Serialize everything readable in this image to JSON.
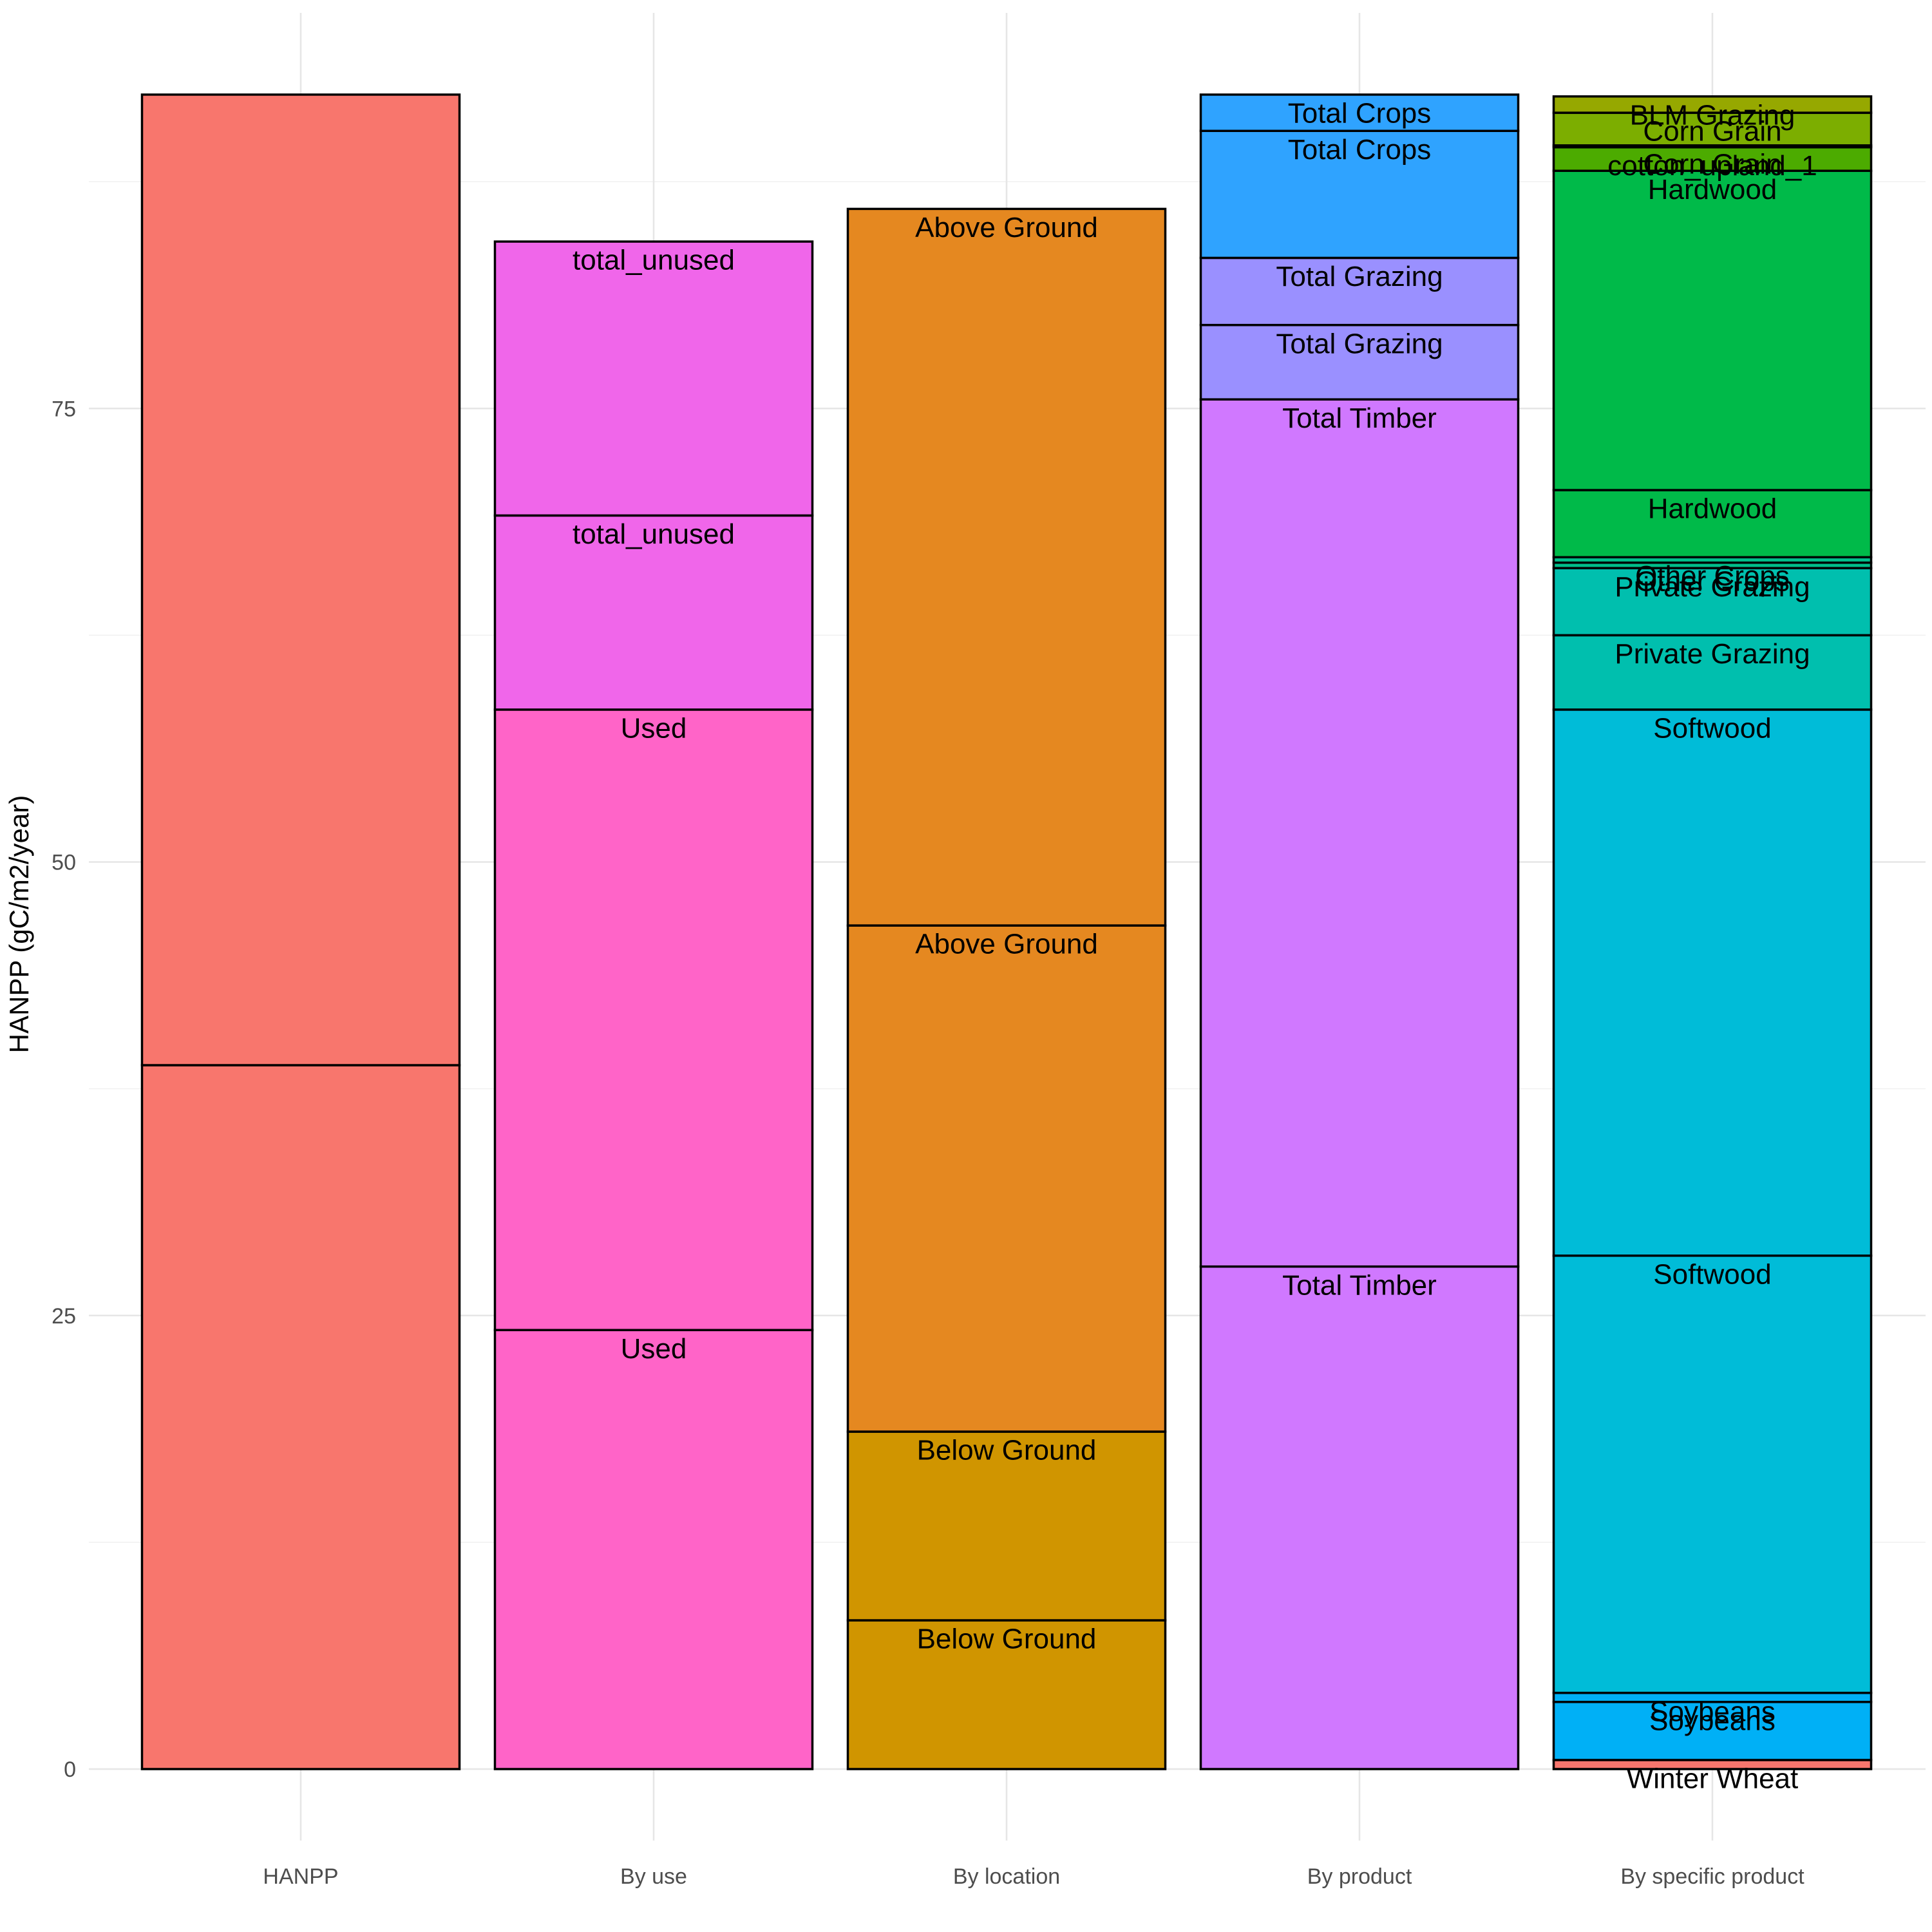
{
  "chart_data": {
    "type": "bar",
    "stacked": true,
    "ylabel": "HANPP (gC/m2/year)",
    "xlabel": "",
    "ylim": [
      0,
      96
    ],
    "yticks": [
      0,
      25,
      50,
      75
    ],
    "grid": true,
    "legend": "none",
    "categories": [
      "HANPP",
      "By use",
      "By location",
      "By product",
      "By specific product"
    ],
    "bars": [
      {
        "category": "HANPP",
        "color": "#F8766D",
        "segments": [
          {
            "label": "",
            "value": 38.8,
            "color": "#F8766D"
          },
          {
            "label": "",
            "value": 53.5,
            "color": "#F8766D"
          }
        ]
      },
      {
        "category": "By use",
        "segments": [
          {
            "label": "Used",
            "value": 24.2,
            "color": "#FF64C8"
          },
          {
            "label": "Used",
            "value": 34.2,
            "color": "#FF64C8"
          },
          {
            "label": "total_unused",
            "value": 10.7,
            "color": "#F066EA"
          },
          {
            "label": "total_unused",
            "value": 15.1,
            "color": "#F066EA"
          }
        ]
      },
      {
        "category": "By location",
        "segments": [
          {
            "label": "Below Ground",
            "value": 8.2,
            "color": "#D09500"
          },
          {
            "label": "Below Ground",
            "value": 10.4,
            "color": "#D09500"
          },
          {
            "label": "Above Ground",
            "value": 27.9,
            "color": "#E58820"
          },
          {
            "label": "Above Ground",
            "value": 39.5,
            "color": "#E58820"
          }
        ]
      },
      {
        "category": "By product",
        "segments": [
          {
            "label": "Total Timber",
            "value": 27.7,
            "color": "#D078FF"
          },
          {
            "label": "Total Timber",
            "value": 47.8,
            "color": "#D078FF"
          },
          {
            "label": "Total Grazing",
            "value": 4.1,
            "color": "#9A90FF"
          },
          {
            "label": "Total Grazing",
            "value": 3.7,
            "color": "#9A90FF"
          },
          {
            "label": "Total Crops",
            "value": 7.0,
            "color": "#2FA3FF"
          },
          {
            "label": "Total Crops",
            "value": 2.0,
            "color": "#2FA3FF"
          }
        ]
      },
      {
        "category": "By specific product",
        "segments": [
          {
            "label": "Winter Wheat",
            "value": 0.5,
            "color": "#F8766D"
          },
          {
            "label": "Soybeans",
            "value": 3.2,
            "color": "#00B0F6"
          },
          {
            "label": "Soybeans",
            "value": 0.5,
            "color": "#00B0F6"
          },
          {
            "label": "Softwood",
            "value": 24.1,
            "color": "#00BCD8"
          },
          {
            "label": "Softwood",
            "value": 30.1,
            "color": "#00BCD8"
          },
          {
            "label": "Private Grazing",
            "value": 4.1,
            "color": "#00BFAE"
          },
          {
            "label": "Private Grazing",
            "value": 3.7,
            "color": "#00BFAE"
          },
          {
            "label": "Other Crops",
            "value": 0.3,
            "color": "#00BE8A"
          },
          {
            "label": "Other Crops",
            "value": 0.3,
            "color": "#00BE8A"
          },
          {
            "label": "Hardwood",
            "value": 3.7,
            "color": "#00BA49"
          },
          {
            "label": "Hardwood",
            "value": 17.6,
            "color": "#00BA49"
          },
          {
            "label": "cotton_upland_1",
            "value": 1.3,
            "color": "#4CAB00"
          },
          {
            "label": "Corn Grain",
            "value": 0.1,
            "color": "#7CAE00"
          },
          {
            "label": "Corn Grain",
            "value": 1.8,
            "color": "#7CAE00"
          },
          {
            "label": "BLM Grazing",
            "value": 0.9,
            "color": "#96A800"
          }
        ]
      }
    ]
  }
}
